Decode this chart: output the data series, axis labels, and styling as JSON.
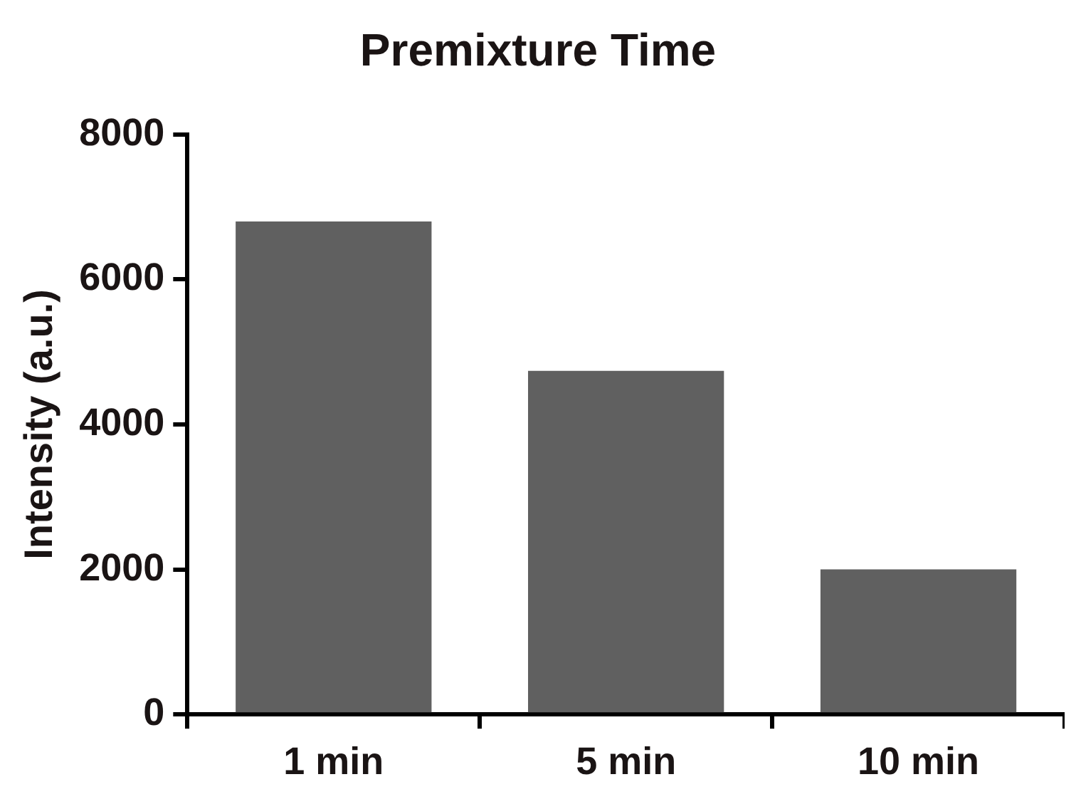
{
  "chart_data": {
    "type": "bar",
    "title": "Premixture Time",
    "ylabel": "Intensity (a.u.)",
    "categories": [
      "1 min",
      "5 min",
      "10 min"
    ],
    "values": [
      6800,
      4740,
      2000
    ],
    "color": "#606060",
    "ylim": [
      0,
      8000
    ],
    "yticks": [
      0,
      2000,
      4000,
      6000,
      8000
    ]
  }
}
